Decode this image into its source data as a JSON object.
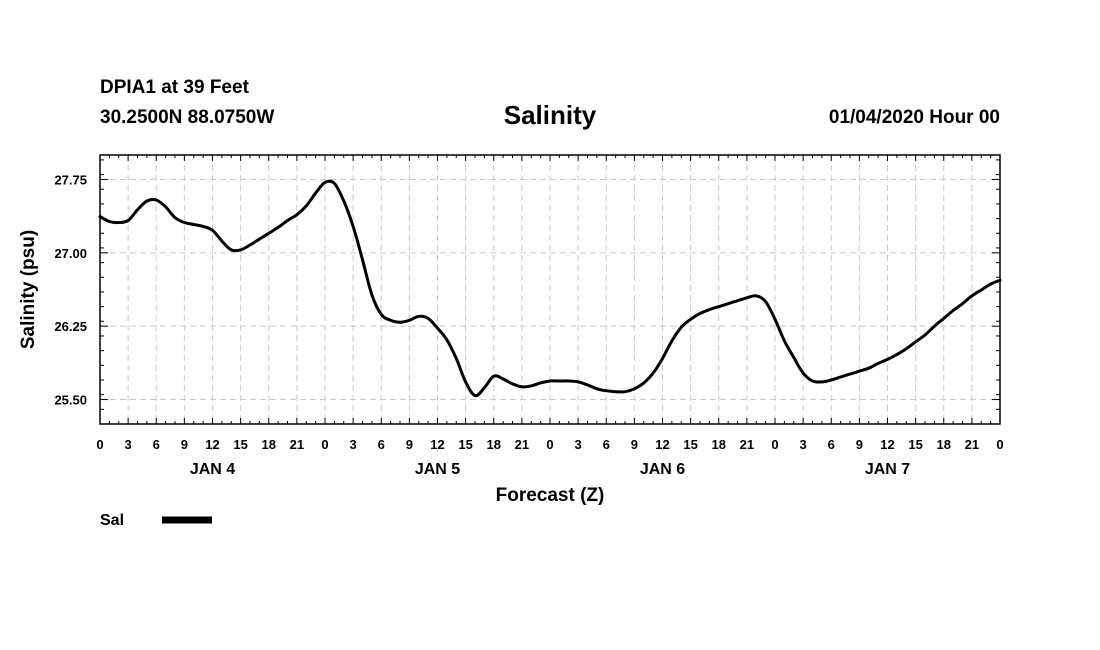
{
  "header": {
    "station": "DPIA1 at 39 Feet",
    "coords": "30.2500N 88.0750W",
    "datetime": "01/04/2020 Hour 00"
  },
  "chart_data": {
    "type": "line",
    "title": "Salinity",
    "xlabel": "Forecast (Z)",
    "ylabel": "Salinity (psu)",
    "xlim": [
      0,
      96
    ],
    "ylim": [
      25.25,
      28.0
    ],
    "yticks": [
      25.5,
      26.25,
      27.0,
      27.75
    ],
    "ytick_labels": [
      "25.50",
      "26.25",
      "27.00",
      "27.75"
    ],
    "xtick_labels": [
      "0",
      "3",
      "6",
      "9",
      "12",
      "15",
      "18",
      "21",
      "0",
      "3",
      "6",
      "9",
      "12",
      "15",
      "18",
      "21",
      "0",
      "3",
      "6",
      "9",
      "12",
      "15",
      "18",
      "21",
      "0",
      "3",
      "6",
      "9",
      "12",
      "15",
      "18",
      "21",
      "0"
    ],
    "day_labels": [
      {
        "label": "JAN 4",
        "hour": 12
      },
      {
        "label": "JAN 5",
        "hour": 36
      },
      {
        "label": "JAN 6",
        "hour": 60
      },
      {
        "label": "JAN 7",
        "hour": 84
      }
    ],
    "grid": true,
    "legend": {
      "position": "bottom-left",
      "entries": [
        {
          "name": "Sal",
          "color": "#000000"
        }
      ]
    },
    "series": [
      {
        "name": "Sal",
        "color": "#000000",
        "x": [
          0,
          1,
          2,
          3,
          4,
          5,
          6,
          7,
          8,
          9,
          10,
          11,
          12,
          13,
          14,
          15,
          16,
          17,
          18,
          19,
          20,
          21,
          22,
          23,
          24,
          25,
          26,
          27,
          28,
          29,
          30,
          31,
          32,
          33,
          34,
          35,
          36,
          37,
          38,
          39,
          40,
          41,
          42,
          43,
          44,
          45,
          46,
          47,
          48,
          49,
          50,
          51,
          52,
          53,
          54,
          55,
          56,
          57,
          58,
          59,
          60,
          61,
          62,
          63,
          64,
          65,
          66,
          67,
          68,
          69,
          70,
          71,
          72,
          73,
          74,
          75,
          76,
          77,
          78,
          79,
          80,
          81,
          82,
          83,
          84,
          85,
          86,
          87,
          88,
          89,
          90,
          91,
          92,
          93,
          94,
          95,
          96
        ],
        "values": [
          27.37,
          27.32,
          27.31,
          27.33,
          27.44,
          27.53,
          27.54,
          27.47,
          27.36,
          27.31,
          27.29,
          27.27,
          27.23,
          27.12,
          27.03,
          27.03,
          27.08,
          27.14,
          27.2,
          27.26,
          27.33,
          27.39,
          27.48,
          27.61,
          27.72,
          27.71,
          27.53,
          27.27,
          26.93,
          26.57,
          26.37,
          26.31,
          26.29,
          26.31,
          26.35,
          26.33,
          26.23,
          26.11,
          25.92,
          25.68,
          25.54,
          25.62,
          25.74,
          25.71,
          25.66,
          25.63,
          25.64,
          25.67,
          25.69,
          25.69,
          25.69,
          25.68,
          25.65,
          25.61,
          25.59,
          25.58,
          25.58,
          25.61,
          25.67,
          25.77,
          25.92,
          26.1,
          26.24,
          26.32,
          26.38,
          26.42,
          26.45,
          26.48,
          26.51,
          26.54,
          26.56,
          26.5,
          26.32,
          26.1,
          25.93,
          25.77,
          25.69,
          25.68,
          25.7,
          25.73,
          25.76,
          25.79,
          25.82,
          25.87,
          25.91,
          25.96,
          26.02,
          26.09,
          26.16,
          26.25,
          26.33,
          26.41,
          26.48,
          26.56,
          26.62,
          26.68,
          26.72
        ]
      }
    ]
  }
}
